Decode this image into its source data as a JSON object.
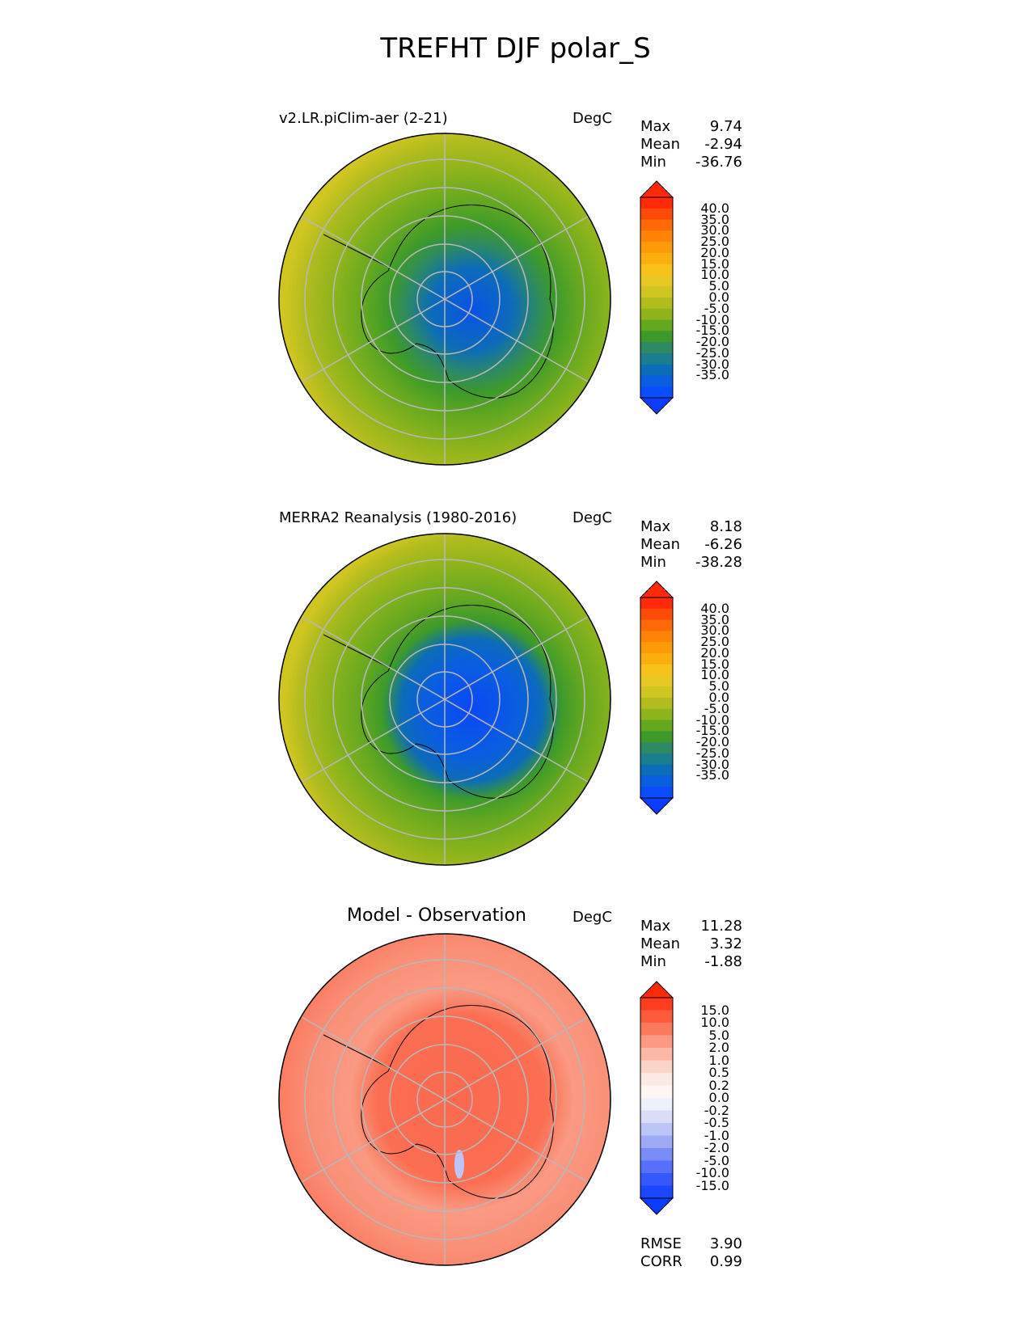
{
  "title": "TREFHT DJF polar_S",
  "panels": [
    {
      "title": "v2.LR.piClim-aer (2-21)",
      "units": "DegC",
      "stats": [
        {
          "label": "Max",
          "value": "9.74"
        },
        {
          "label": "Mean",
          "value": "-2.94"
        },
        {
          "label": "Min",
          "value": "-36.76"
        }
      ]
    },
    {
      "title": "MERRA2 Reanalysis (1980-2016)",
      "units": "DegC",
      "stats": [
        {
          "label": "Max",
          "value": "8.18"
        },
        {
          "label": "Mean",
          "value": "-6.26"
        },
        {
          "label": "Min",
          "value": "-38.28"
        }
      ]
    },
    {
      "title": "Model - Observation",
      "units": "DegC",
      "stats": [
        {
          "label": "Max",
          "value": "11.28"
        },
        {
          "label": "Mean",
          "value": "3.32"
        },
        {
          "label": "Min",
          "value": "-1.88"
        }
      ],
      "metrics": [
        {
          "label": "RMSE",
          "value": "3.90"
        },
        {
          "label": "CORR",
          "value": "0.99"
        }
      ]
    }
  ],
  "colorbars": {
    "field": {
      "ticks": [
        "40.0",
        "35.0",
        "30.0",
        "25.0",
        "20.0",
        "15.0",
        "10.0",
        "5.0",
        "0.0",
        "-5.0",
        "-10.0",
        "-15.0",
        "-20.0",
        "-25.0",
        "-30.0",
        "-35.0"
      ],
      "colors": [
        "#ff2a0a",
        "#ff4a08",
        "#ff6a06",
        "#ff8305",
        "#fd9a08",
        "#fbae10",
        "#f8c21a",
        "#e8c822",
        "#cfc622",
        "#b2bc1e",
        "#8eb41c",
        "#64a820",
        "#3d9a2a",
        "#2e8a62",
        "#1a7e8e",
        "#0c6cb8",
        "#0a5ee0",
        "#0a4cff"
      ],
      "extend_top_color": "#ff2a0a",
      "extend_bottom_color": "#0a3cff"
    },
    "diff": {
      "ticks": [
        "15.0",
        "10.0",
        "5.0",
        "2.0",
        "1.0",
        "0.5",
        "0.2",
        "0.0",
        "-0.2",
        "-0.5",
        "-1.0",
        "-2.0",
        "-5.0",
        "-10.0",
        "-15.0"
      ],
      "colors": [
        "#ff3d1e",
        "#fe5a3c",
        "#fb7a5e",
        "#fa9a82",
        "#fbb8a6",
        "#fcd3c7",
        "#fde9e3",
        "#fff6f3",
        "#eef0fb",
        "#d9ddf8",
        "#bcc6f6",
        "#9eaaf6",
        "#7a8cf7",
        "#5670fa",
        "#3558fc",
        "#1a46ff"
      ],
      "extend_top_color": "#ff2a0a",
      "extend_bottom_color": "#0a3cff"
    }
  },
  "chart_data": [
    {
      "type": "heatmap",
      "title": "v2.LR.piClim-aer (2-21)",
      "projection": "south polar stereographic",
      "units": "DegC",
      "max": 9.74,
      "mean": -2.94,
      "min": -36.76,
      "levels": [
        -35,
        -30,
        -25,
        -20,
        -15,
        -10,
        -5,
        0,
        5,
        10,
        15,
        20,
        25,
        30,
        35,
        40
      ]
    },
    {
      "type": "heatmap",
      "title": "MERRA2 Reanalysis (1980-2016)",
      "projection": "south polar stereographic",
      "units": "DegC",
      "max": 8.18,
      "mean": -6.26,
      "min": -38.28,
      "levels": [
        -35,
        -30,
        -25,
        -20,
        -15,
        -10,
        -5,
        0,
        5,
        10,
        15,
        20,
        25,
        30,
        35,
        40
      ]
    },
    {
      "type": "heatmap",
      "title": "Model - Observation",
      "projection": "south polar stereographic",
      "units": "DegC",
      "max": 11.28,
      "mean": 3.32,
      "min": -1.88,
      "rmse": 3.9,
      "corr": 0.99,
      "levels": [
        -15,
        -10,
        -5,
        -2,
        -1,
        -0.5,
        -0.2,
        0,
        0.2,
        0.5,
        1,
        2,
        5,
        10,
        15
      ]
    }
  ]
}
